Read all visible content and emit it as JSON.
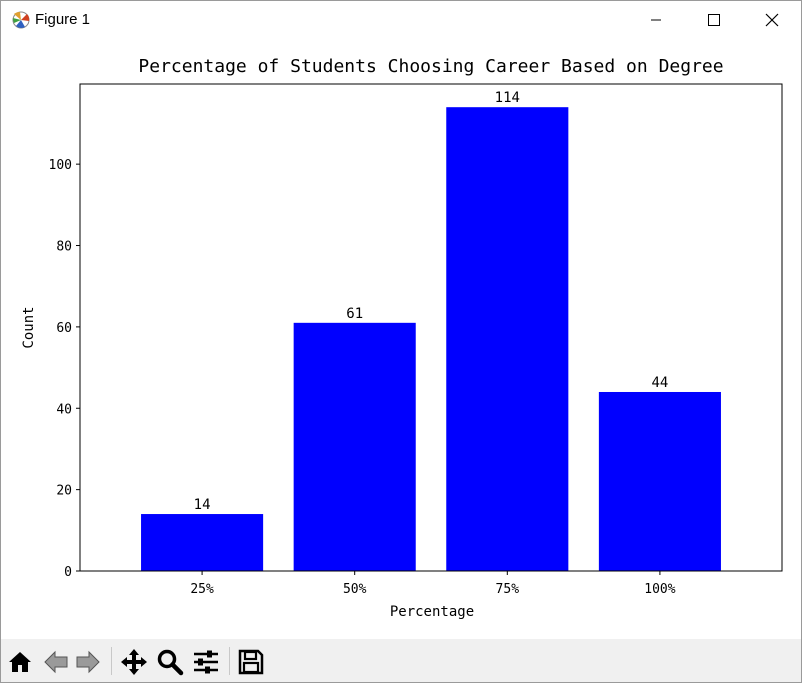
{
  "window": {
    "title": "Figure 1"
  },
  "icons": {
    "app": "matplotlib-icon",
    "minimize": "minimize-icon",
    "maximize": "maximize-icon",
    "close": "close-icon"
  },
  "toolbar": {
    "buttons": [
      {
        "name": "home-icon"
      },
      {
        "name": "back-arrow-icon"
      },
      {
        "name": "forward-arrow-icon"
      },
      {
        "name": "pan-move-icon"
      },
      {
        "name": "zoom-icon"
      },
      {
        "name": "configure-subplots-icon"
      },
      {
        "name": "save-icon"
      }
    ]
  },
  "colors": {
    "bar": "#0000ff"
  },
  "chart_data": {
    "type": "bar",
    "title": "Percentage of Students Choosing Career Based on Degree",
    "xlabel": "Percentage",
    "ylabel": "Count",
    "categories": [
      "25%",
      "50%",
      "75%",
      "100%"
    ],
    "values": [
      14,
      61,
      114,
      44
    ],
    "data_labels": [
      "14",
      "61",
      "114",
      "44"
    ],
    "ylim": [
      0,
      119.7
    ],
    "yticks": [
      0,
      20,
      40,
      60,
      80,
      100
    ],
    "grid": false,
    "legend": "none"
  }
}
